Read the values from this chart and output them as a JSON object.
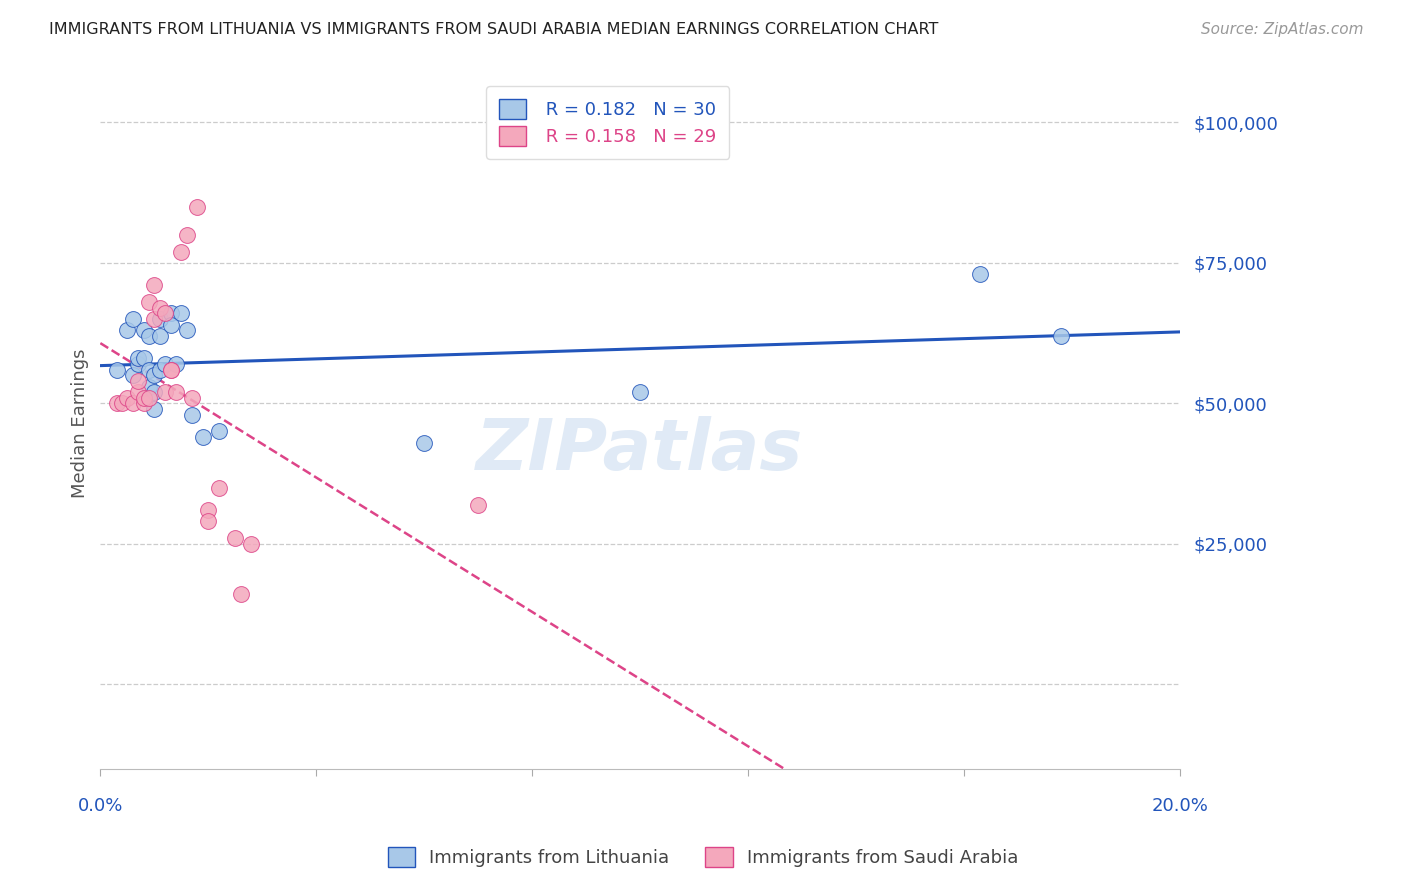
{
  "title": "IMMIGRANTS FROM LITHUANIA VS IMMIGRANTS FROM SAUDI ARABIA MEDIAN EARNINGS CORRELATION CHART",
  "source": "Source: ZipAtlas.com",
  "ylabel": "Median Earnings",
  "y_ticks": [
    0,
    25000,
    50000,
    75000,
    100000
  ],
  "y_tick_labels": [
    "",
    "$25,000",
    "$50,000",
    "$75,000",
    "$100,000"
  ],
  "x_range": [
    0.0,
    0.2
  ],
  "y_range": [
    -15000,
    108000
  ],
  "legend_r1": "R = 0.182",
  "legend_n1": "N = 30",
  "legend_r2": "R = 0.158",
  "legend_n2": "N = 29",
  "color_lithuania": "#a8c8e8",
  "color_saudi": "#f4a8bc",
  "color_trendline_lith": "#2255bb",
  "color_trendline_saudi": "#dd4488",
  "watermark_color": "#ccddf0",
  "lith_x": [
    0.003,
    0.005,
    0.006,
    0.006,
    0.007,
    0.007,
    0.008,
    0.008,
    0.009,
    0.009,
    0.009,
    0.01,
    0.01,
    0.01,
    0.011,
    0.011,
    0.011,
    0.012,
    0.013,
    0.013,
    0.014,
    0.015,
    0.016,
    0.017,
    0.019,
    0.022,
    0.06,
    0.1,
    0.163,
    0.178
  ],
  "lith_y": [
    56000,
    63000,
    65000,
    55000,
    57000,
    58000,
    63000,
    58000,
    53000,
    56000,
    62000,
    49000,
    55000,
    52000,
    56000,
    62000,
    65000,
    57000,
    66000,
    64000,
    57000,
    66000,
    63000,
    48000,
    44000,
    45000,
    43000,
    52000,
    73000,
    62000
  ],
  "saudi_x": [
    0.003,
    0.004,
    0.005,
    0.006,
    0.007,
    0.007,
    0.008,
    0.008,
    0.009,
    0.009,
    0.01,
    0.01,
    0.011,
    0.012,
    0.012,
    0.013,
    0.013,
    0.014,
    0.015,
    0.016,
    0.017,
    0.018,
    0.02,
    0.02,
    0.022,
    0.025,
    0.026,
    0.028,
    0.07
  ],
  "saudi_y": [
    50000,
    50000,
    51000,
    50000,
    52000,
    54000,
    50000,
    51000,
    68000,
    51000,
    65000,
    71000,
    67000,
    66000,
    52000,
    56000,
    56000,
    52000,
    77000,
    80000,
    51000,
    85000,
    31000,
    29000,
    35000,
    26000,
    16000,
    25000,
    32000
  ]
}
